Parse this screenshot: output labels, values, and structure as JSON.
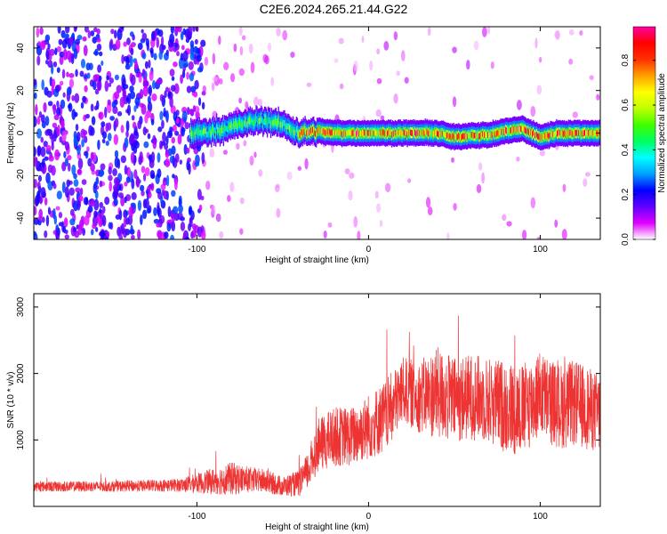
{
  "title": "C2E6.2024.265.21.44.G22",
  "chart_data": [
    {
      "type": "heatmap",
      "xlabel": "Height of straight line (km)",
      "ylabel": "Frequency (Hz)",
      "xlim": [
        -195,
        135
      ],
      "ylim": [
        -50,
        50
      ],
      "x_ticks": [
        -100,
        0,
        100
      ],
      "y_ticks": [
        -40,
        -20,
        0,
        20,
        40
      ],
      "colorbar": {
        "label": "Normalized spectral amplitude",
        "range": [
          0,
          0.95
        ],
        "ticks": [
          "0.0",
          "0.2",
          "0.4",
          "0.6",
          "0.8"
        ],
        "colormap": [
          "#ffffff",
          "#e000ff",
          "#6000ff",
          "#0000ff",
          "#00a0ff",
          "#00ffff",
          "#00ff60",
          "#40ff00",
          "#c0ff00",
          "#ffff00",
          "#ffa000",
          "#ff3000",
          "#ff0000",
          "#ff00a0"
        ]
      },
      "signal_ridge": {
        "description_points_x": [
          -100,
          -90,
          -80,
          -70,
          -60,
          -50,
          -40,
          -30,
          -20,
          -10,
          0,
          10,
          20,
          30,
          40,
          50,
          60,
          70,
          80,
          90,
          100,
          110,
          120,
          130
        ],
        "frequency_hz": [
          0,
          1,
          3,
          5,
          6,
          4,
          0,
          1,
          0,
          0,
          0,
          0,
          0,
          0,
          0,
          -2,
          -1,
          -1,
          1,
          2,
          -2,
          0,
          0,
          0
        ]
      }
    },
    {
      "type": "line",
      "xlabel": "Height of straight line (km)",
      "ylabel": "SNR (10 * v/v)",
      "xlim": [
        -195,
        135
      ],
      "ylim": [
        0,
        3200
      ],
      "x_ticks": [
        -100,
        0,
        100
      ],
      "y_ticks": [
        1000,
        2000,
        3000
      ],
      "series": [
        {
          "color": "#ee3333",
          "envelope_x": [
            -195,
            -150,
            -110,
            -90,
            -80,
            -70,
            -60,
            -50,
            -40,
            -35,
            -30,
            -20,
            -10,
            0,
            10,
            20,
            30,
            40,
            50,
            60,
            70,
            80,
            90,
            100,
            110,
            120,
            135
          ],
          "mean": [
            300,
            300,
            320,
            380,
            420,
            400,
            380,
            300,
            350,
            550,
            900,
            1050,
            1050,
            1200,
            1350,
            1750,
            1650,
            1700,
            1600,
            1650,
            1600,
            1500,
            1450,
            1700,
            1500,
            1550,
            1400
          ],
          "spread": [
            80,
            80,
            100,
            200,
            250,
            200,
            180,
            150,
            200,
            300,
            400,
            450,
            450,
            500,
            550,
            500,
            550,
            700,
            650,
            650,
            650,
            700,
            700,
            650,
            650,
            650,
            600
          ]
        }
      ]
    }
  ]
}
